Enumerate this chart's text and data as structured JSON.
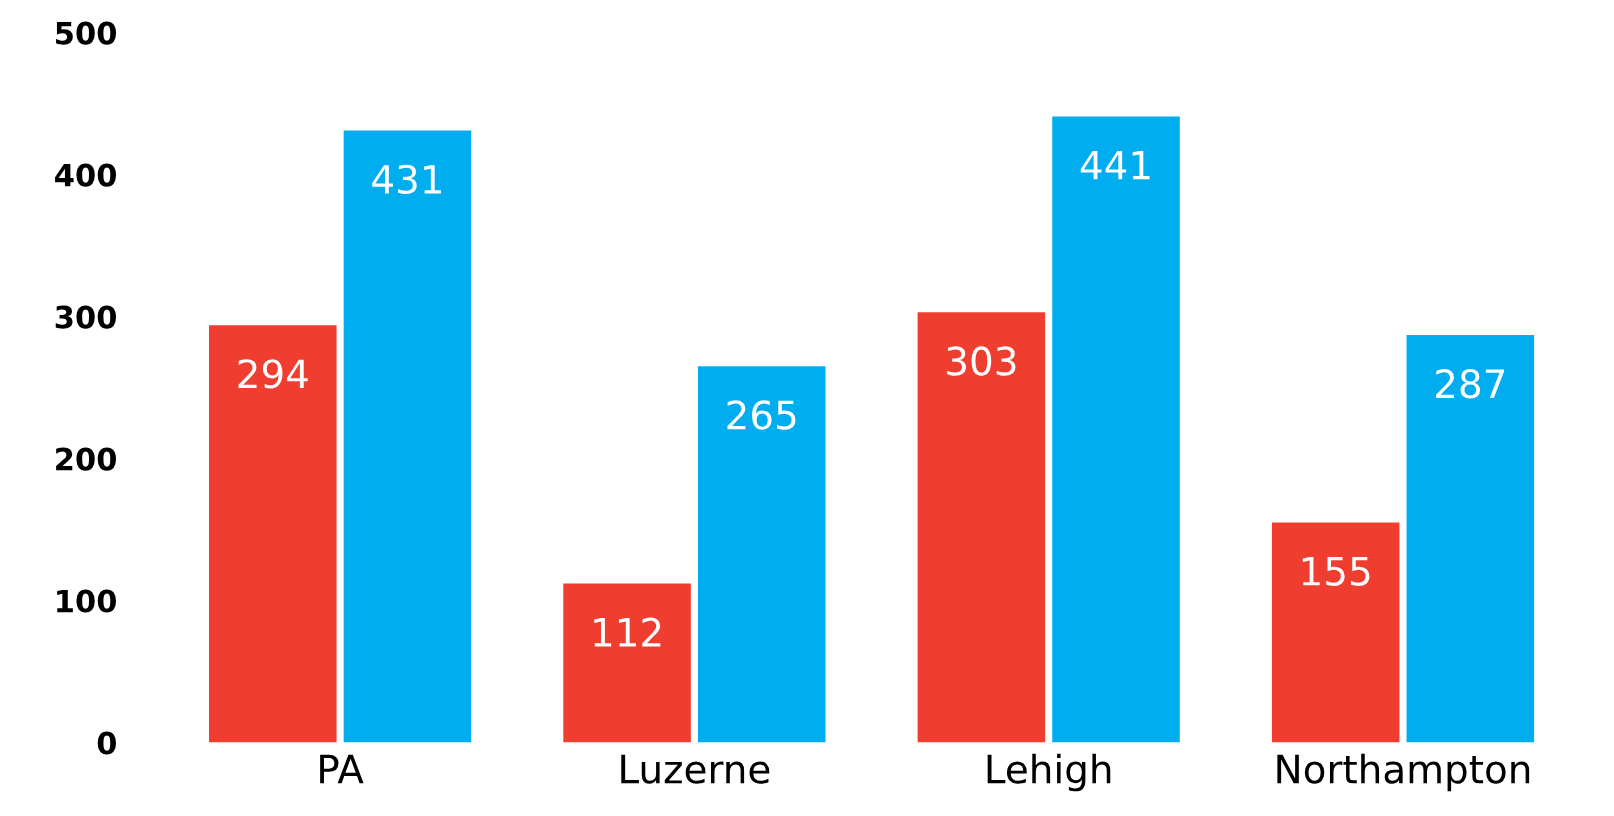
{
  "chart_data": {
    "type": "bar",
    "categories": [
      "PA",
      "Luzerne",
      "Lehigh",
      "Northampton"
    ],
    "series": [
      {
        "color": "#ef3e2f",
        "values": [
          294,
          112,
          303,
          155
        ]
      },
      {
        "color": "#00aeef",
        "values": [
          431,
          265,
          441,
          287
        ]
      }
    ],
    "ylim": [
      0,
      500
    ],
    "yticks": [
      0,
      100,
      200,
      300,
      400,
      500
    ],
    "data_labels": true,
    "grid": false,
    "legend": false
  }
}
